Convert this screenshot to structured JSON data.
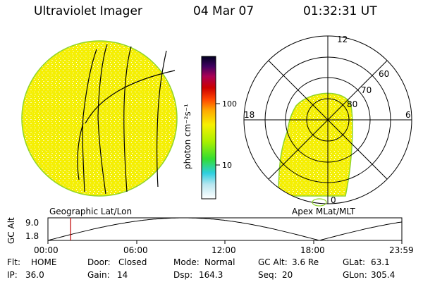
{
  "header": {
    "title": "Ultraviolet Imager",
    "date": "04 Mar 07",
    "time": "01:32:31 UT"
  },
  "colorbar": {
    "unit_label": "photon cm⁻²s⁻¹",
    "ticks": [
      "100",
      "10"
    ]
  },
  "polar": {
    "mlt_labels": [
      "12",
      "18",
      "6",
      "0"
    ],
    "lat_labels": [
      "60",
      "70",
      "80"
    ]
  },
  "captions": {
    "left": "Geographic Lat/Lon",
    "right": "Apex MLat/MLT"
  },
  "altitude_plot": {
    "axis_title": "GC Alt",
    "y_ticks": [
      "9.0",
      "1.8"
    ],
    "x_ticks": [
      "00:00",
      "06:00",
      "12:00",
      "18:00",
      "23:59"
    ],
    "y_range": [
      1.8,
      9.0
    ],
    "current_time_hours": 1.54
  },
  "info": {
    "flt": {
      "label": "Flt:",
      "value": "HOME"
    },
    "ip": {
      "label": "IP:",
      "value": "36.0"
    },
    "door": {
      "label": "Door:",
      "value": "Closed"
    },
    "gain": {
      "label": "Gain:",
      "value": "14"
    },
    "mode": {
      "label": "Mode:",
      "value": "Normal"
    },
    "dsp": {
      "label": "Dsp:",
      "value": "164.3"
    },
    "gcalt": {
      "label": "GC Alt:",
      "value": "3.6 Re"
    },
    "seq": {
      "label": "Seq:",
      "value": "20"
    },
    "glat": {
      "label": "GLat:",
      "value": "63.1"
    },
    "glon": {
      "label": "GLon:",
      "value": "305.4"
    }
  },
  "colors": {
    "disk_fill": "#f4f000",
    "disk_edge": "#8fd42a",
    "marker": "#c00000"
  }
}
